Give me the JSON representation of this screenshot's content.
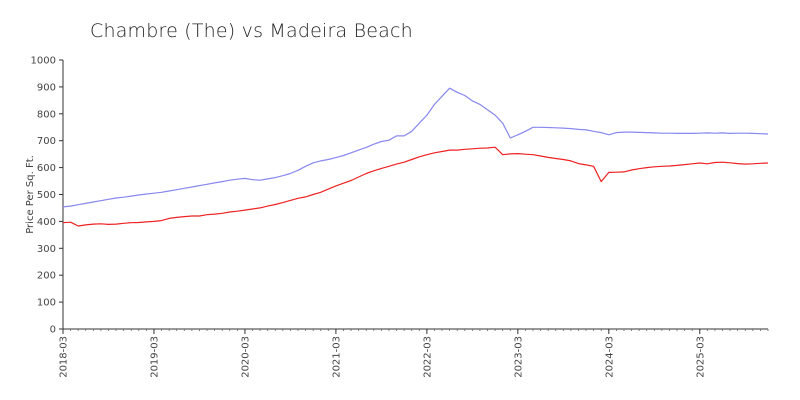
{
  "chart_data": {
    "type": "line",
    "title": "Chambre (The) vs Madeira Beach",
    "xlabel": "",
    "ylabel": "Price Per Sq. Ft.",
    "ylim": [
      0,
      1000
    ],
    "yticks": [
      0,
      100,
      200,
      300,
      400,
      500,
      600,
      700,
      800,
      900,
      1000
    ],
    "xticks": [
      "2018-03",
      "2019-03",
      "2020-03",
      "2021-03",
      "2022-03",
      "2023-03",
      "2024-03",
      "2025-03"
    ],
    "grid": false,
    "legend": "none",
    "x": [
      "2018-03",
      "2018-04",
      "2018-05",
      "2018-06",
      "2018-07",
      "2018-08",
      "2018-09",
      "2018-10",
      "2018-11",
      "2018-12",
      "2019-01",
      "2019-02",
      "2019-03",
      "2019-04",
      "2019-05",
      "2019-06",
      "2019-07",
      "2019-08",
      "2019-09",
      "2019-10",
      "2019-11",
      "2019-12",
      "2020-01",
      "2020-02",
      "2020-03",
      "2020-04",
      "2020-05",
      "2020-06",
      "2020-07",
      "2020-08",
      "2020-09",
      "2020-10",
      "2020-11",
      "2020-12",
      "2021-01",
      "2021-02",
      "2021-03",
      "2021-04",
      "2021-05",
      "2021-06",
      "2021-07",
      "2021-08",
      "2021-09",
      "2021-10",
      "2021-11",
      "2021-12",
      "2022-01",
      "2022-02",
      "2022-03",
      "2022-04",
      "2022-05",
      "2022-06",
      "2022-07",
      "2022-08",
      "2022-09",
      "2022-10",
      "2022-11",
      "2022-12",
      "2023-01",
      "2023-02",
      "2023-03",
      "2023-04",
      "2023-05",
      "2023-06",
      "2023-07",
      "2023-08",
      "2023-09",
      "2023-10",
      "2023-11",
      "2023-12",
      "2024-01",
      "2024-02",
      "2024-03",
      "2024-04",
      "2024-05",
      "2024-06",
      "2024-07",
      "2024-08",
      "2024-09",
      "2024-10",
      "2024-11",
      "2024-12",
      "2025-01",
      "2025-02",
      "2025-03",
      "2025-04",
      "2025-05",
      "2025-06",
      "2025-07",
      "2025-08",
      "2025-09",
      "2025-10",
      "2025-11",
      "2025-12"
    ],
    "series": [
      {
        "color": "#8888ee",
        "values": [
          454,
          457,
          462,
          467,
          472,
          477,
          482,
          487,
          490,
          494,
          498,
          502,
          505,
          508,
          513,
          518,
          523,
          528,
          533,
          538,
          543,
          548,
          553,
          557,
          560,
          555,
          553,
          558,
          563,
          570,
          578,
          590,
          605,
          618,
          625,
          630,
          637,
          645,
          655,
          665,
          675,
          687,
          697,
          702,
          718,
          718,
          735,
          765,
          795,
          835,
          865,
          895,
          880,
          868,
          848,
          835,
          815,
          795,
          765,
          710,
          722,
          735,
          750,
          750,
          749,
          748,
          747,
          745,
          742,
          740,
          735,
          730,
          722,
          730,
          732,
          732,
          731,
          730,
          729,
          728,
          728,
          727,
          727,
          727,
          728,
          729,
          728,
          729,
          727,
          728,
          728,
          727,
          726,
          725
        ]
      },
      {
        "color": "#ee2222",
        "values": [
          395,
          397,
          383,
          387,
          390,
          391,
          389,
          390,
          393,
          395,
          396,
          398,
          400,
          403,
          411,
          415,
          418,
          420,
          420,
          425,
          427,
          430,
          435,
          438,
          442,
          446,
          450,
          457,
          463,
          470,
          478,
          486,
          491,
          500,
          508,
          520,
          532,
          542,
          552,
          565,
          578,
          588,
          597,
          605,
          613,
          620,
          630,
          640,
          648,
          655,
          660,
          665,
          665,
          668,
          670,
          672,
          673,
          676,
          648,
          651,
          652,
          650,
          648,
          643,
          638,
          634,
          630,
          625,
          615,
          610,
          605,
          548,
          582,
          583,
          584,
          591,
          596,
          600,
          603,
          605,
          606,
          608,
          611,
          614,
          617,
          614,
          619,
          620,
          618,
          615,
          613,
          614,
          616,
          617
        ]
      }
    ]
  }
}
